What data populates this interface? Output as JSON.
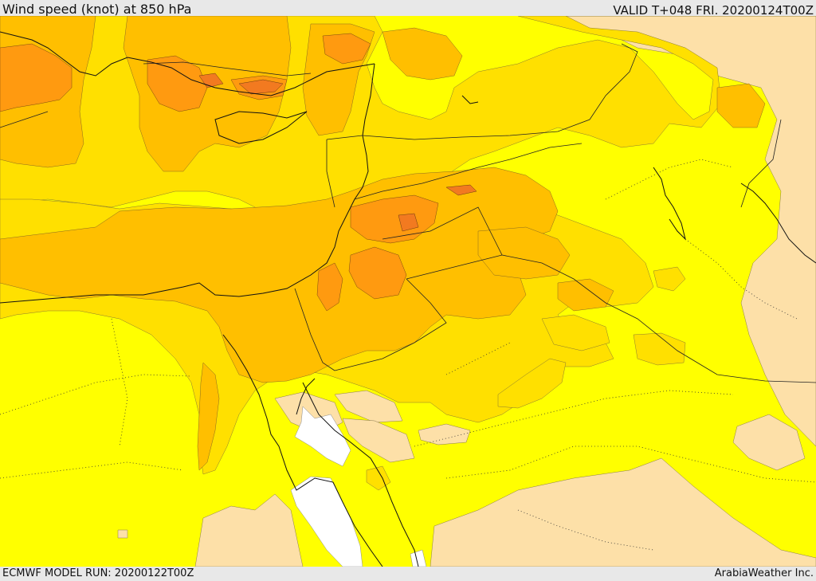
{
  "header": {
    "title": "Wind speed (knot) at 850 hPa",
    "valid": "VALID T+048 FRI. 20200124T00Z"
  },
  "footer": {
    "model_run": "ECMWF MODEL RUN: 20200122T00Z",
    "credit": "ArabiaWeather Inc."
  },
  "colors": {
    "calm": "#ffffff",
    "light": "#fde0a8",
    "yellow": "#ffff00",
    "gold": "#ffe000",
    "amber": "#ffbf00",
    "orange": "#ff9a10",
    "dark_orange": "#f27a20"
  }
}
